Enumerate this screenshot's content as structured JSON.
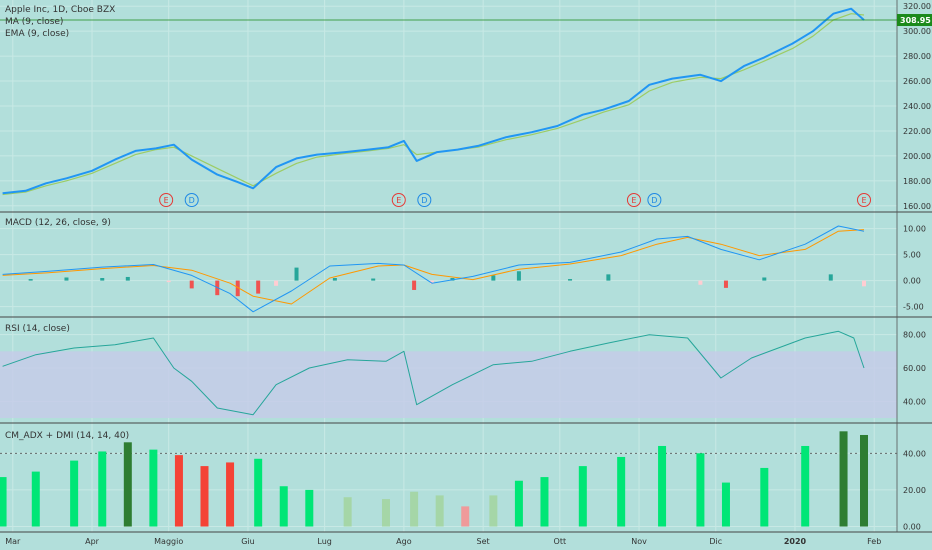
{
  "header": {
    "title": "Apple Inc, 1D, Cboe BZX",
    "ma_label": "MA (9, close)",
    "ema_label": "EMA (9, close)",
    "last_price": "308.95"
  },
  "panes": {
    "macd_label": "MACD (12, 26, close, 9)",
    "rsi_label": "RSI (14, close)",
    "adx_label": "CM_ADX + DMI (14, 14, 40)"
  },
  "colors": {
    "background": "#b2dfdb",
    "price": "#2196f3",
    "ema": "#9ccc65",
    "macd": "#2196f3",
    "signal": "#ff9800",
    "hist_pos": "#26a69a",
    "hist_neg": "#ef5350",
    "hist_neg_light": "#ffcdd2",
    "rsi": "#26a69a",
    "rsi_band": "#c5cae9",
    "adx_bright": "#00e676",
    "adx_dark": "#2e7d32",
    "adx_red": "#f44336",
    "adx_lightgreen": "#a5d6a7",
    "adx_pink": "#ef9a9a",
    "price_tag": "#1b8a1b"
  },
  "chart_data": [
    {
      "type": "line",
      "name": "price",
      "x": [
        "2019-02-25",
        "2019-03-06",
        "2019-03-14",
        "2019-03-22",
        "2019-04-01",
        "2019-04-10",
        "2019-04-18",
        "2019-04-26",
        "2019-05-03",
        "2019-05-10",
        "2019-05-20",
        "2019-05-28",
        "2019-06-03",
        "2019-06-12",
        "2019-06-20",
        "2019-06-28",
        "2019-07-09",
        "2019-07-18",
        "2019-07-26",
        "2019-08-01",
        "2019-08-06",
        "2019-08-14",
        "2019-08-22",
        "2019-08-30",
        "2019-09-10",
        "2019-09-20",
        "2019-09-30",
        "2019-10-10",
        "2019-10-18",
        "2019-10-28",
        "2019-11-05",
        "2019-11-14",
        "2019-11-25",
        "2019-12-03",
        "2019-12-12",
        "2019-12-20",
        "2019-12-31",
        "2020-01-08",
        "2020-01-16",
        "2020-01-23",
        "2020-01-28"
      ],
      "y": [
        170,
        172,
        178,
        182,
        188,
        197,
        204,
        206,
        209,
        197,
        185,
        179,
        174,
        191,
        198,
        201,
        203,
        205,
        207,
        212,
        196,
        203,
        205,
        208,
        215,
        219,
        224,
        233,
        237,
        244,
        257,
        262,
        265,
        260,
        272,
        279,
        290,
        300,
        314,
        318,
        309
      ],
      "ylim": [
        155,
        325
      ],
      "yticks": [
        160,
        180,
        200,
        220,
        240,
        260,
        280,
        300,
        320
      ]
    },
    {
      "type": "line",
      "name": "EMA",
      "x": [
        "2019-02-25",
        "2019-03-06",
        "2019-03-14",
        "2019-03-22",
        "2019-04-01",
        "2019-04-10",
        "2019-04-18",
        "2019-04-26",
        "2019-05-03",
        "2019-05-10",
        "2019-05-20",
        "2019-05-28",
        "2019-06-03",
        "2019-06-12",
        "2019-06-20",
        "2019-06-28",
        "2019-07-09",
        "2019-07-18",
        "2019-07-26",
        "2019-08-01",
        "2019-08-06",
        "2019-08-14",
        "2019-08-22",
        "2019-08-30",
        "2019-09-10",
        "2019-09-20",
        "2019-09-30",
        "2019-10-10",
        "2019-10-18",
        "2019-10-28",
        "2019-11-05",
        "2019-11-14",
        "2019-11-25",
        "2019-12-03",
        "2019-12-12",
        "2019-12-20",
        "2019-12-31",
        "2020-01-08",
        "2020-01-16",
        "2020-01-23",
        "2020-01-28"
      ],
      "y": [
        169,
        171,
        176,
        180,
        186,
        194,
        201,
        205,
        207,
        200,
        190,
        182,
        176,
        186,
        194,
        199,
        202,
        204,
        206,
        209,
        201,
        203,
        205,
        207,
        213,
        217,
        222,
        229,
        235,
        241,
        252,
        259,
        263,
        262,
        269,
        276,
        286,
        296,
        309,
        314,
        313
      ]
    },
    {
      "type": "line",
      "name": "MACD",
      "x": [
        "2019-02-25",
        "2019-03-15",
        "2019-04-05",
        "2019-04-25",
        "2019-05-10",
        "2019-05-25",
        "2019-06-03",
        "2019-06-18",
        "2019-07-03",
        "2019-07-22",
        "2019-08-01",
        "2019-08-12",
        "2019-08-28",
        "2019-09-15",
        "2019-10-05",
        "2019-10-25",
        "2019-11-08",
        "2019-11-20",
        "2019-12-03",
        "2019-12-18",
        "2020-01-05",
        "2020-01-18",
        "2020-01-28"
      ],
      "y": [
        1.2,
        1.8,
        2.6,
        3.1,
        1.0,
        -2.5,
        -6.0,
        -2.0,
        2.8,
        3.3,
        3.0,
        -0.5,
        0.8,
        3.0,
        3.5,
        5.5,
        8.0,
        8.5,
        6.0,
        4.0,
        7.0,
        10.5,
        9.5
      ],
      "ylim": [
        -7,
        13
      ],
      "yticks": [
        -5,
        0,
        5,
        10
      ],
      "tick_labels": [
        "-5.00",
        "0.00",
        "5.00",
        "10.00"
      ]
    },
    {
      "type": "line",
      "name": "Signal",
      "x": [
        "2019-02-25",
        "2019-03-15",
        "2019-04-05",
        "2019-04-25",
        "2019-05-10",
        "2019-05-25",
        "2019-06-03",
        "2019-06-18",
        "2019-07-03",
        "2019-07-22",
        "2019-08-01",
        "2019-08-12",
        "2019-08-28",
        "2019-09-15",
        "2019-10-05",
        "2019-10-25",
        "2019-11-08",
        "2019-11-20",
        "2019-12-03",
        "2019-12-18",
        "2020-01-05",
        "2020-01-18",
        "2020-01-28"
      ],
      "y": [
        1.0,
        1.5,
        2.3,
        2.9,
        2.0,
        -0.5,
        -3.0,
        -4.5,
        0.5,
        2.8,
        3.0,
        1.2,
        0.2,
        2.2,
        3.2,
        4.8,
        7.0,
        8.3,
        7.0,
        4.8,
        6.0,
        9.5,
        9.8
      ]
    },
    {
      "type": "bar",
      "name": "MACD histogram",
      "x": [
        "2019-03-08",
        "2019-03-22",
        "2019-04-05",
        "2019-04-15",
        "2019-05-01",
        "2019-05-10",
        "2019-05-20",
        "2019-05-28",
        "2019-06-05",
        "2019-06-12",
        "2019-06-20",
        "2019-07-05",
        "2019-07-20",
        "2019-08-05",
        "2019-08-12",
        "2019-08-20",
        "2019-09-05",
        "2019-09-15",
        "2019-10-05",
        "2019-10-20",
        "2019-11-25",
        "2019-12-05",
        "2019-12-20",
        "2020-01-15",
        "2020-01-28"
      ],
      "values": [
        0.3,
        0.6,
        0.5,
        0.7,
        -0.3,
        -1.5,
        -2.8,
        -3.0,
        -2.5,
        -1.0,
        2.5,
        0.5,
        0.4,
        -1.8,
        -0.6,
        0.5,
        1.0,
        1.8,
        0.3,
        1.2,
        -0.8,
        -1.4,
        0.6,
        1.2,
        -1.1
      ]
    },
    {
      "type": "line",
      "name": "RSI",
      "x": [
        "2019-02-25",
        "2019-03-10",
        "2019-03-25",
        "2019-04-10",
        "2019-04-25",
        "2019-05-03",
        "2019-05-10",
        "2019-05-20",
        "2019-06-03",
        "2019-06-12",
        "2019-06-25",
        "2019-07-10",
        "2019-07-25",
        "2019-08-01",
        "2019-08-06",
        "2019-08-20",
        "2019-09-05",
        "2019-09-20",
        "2019-10-05",
        "2019-10-20",
        "2019-11-05",
        "2019-11-20",
        "2019-12-03",
        "2019-12-15",
        "2020-01-05",
        "2020-01-18",
        "2020-01-24",
        "2020-01-28"
      ],
      "y": [
        61,
        68,
        72,
        74,
        78,
        60,
        52,
        36,
        32,
        50,
        60,
        65,
        64,
        70,
        38,
        50,
        62,
        64,
        70,
        75,
        80,
        78,
        54,
        66,
        78,
        82,
        78,
        60
      ],
      "ylim": [
        27,
        90
      ],
      "band": [
        30,
        70
      ],
      "yticks": [
        40,
        60,
        80
      ],
      "tick_labels": [
        "40.00",
        "60.00",
        "80.00"
      ]
    },
    {
      "type": "bar",
      "name": "ADX",
      "x": [
        "2019-02-25",
        "2019-03-10",
        "2019-03-25",
        "2019-04-05",
        "2019-04-15",
        "2019-04-25",
        "2019-05-05",
        "2019-05-15",
        "2019-05-25",
        "2019-06-05",
        "2019-06-15",
        "2019-06-25",
        "2019-07-10",
        "2019-07-25",
        "2019-08-05",
        "2019-08-15",
        "2019-08-25",
        "2019-09-05",
        "2019-09-15",
        "2019-09-25",
        "2019-10-10",
        "2019-10-25",
        "2019-11-10",
        "2019-11-25",
        "2019-12-05",
        "2019-12-20",
        "2020-01-05",
        "2020-01-20",
        "2020-01-28"
      ],
      "values": [
        27,
        30,
        36,
        41,
        46,
        42,
        39,
        33,
        35,
        37,
        22,
        20,
        16,
        15,
        19,
        17,
        11,
        17,
        25,
        27,
        33,
        38,
        44,
        40,
        24,
        32,
        44,
        52,
        50
      ],
      "ylim": [
        -3,
        56
      ],
      "level": 40,
      "yticks": [
        0,
        20,
        40
      ],
      "tick_labels": [
        "0.00",
        "20.00",
        "40.00"
      ]
    }
  ],
  "earnings_markers": [
    {
      "date": "2019-04-30",
      "label": "E"
    },
    {
      "date": "2019-05-10",
      "label": "D"
    },
    {
      "date": "2019-07-30",
      "label": "E"
    },
    {
      "date": "2019-08-09",
      "label": "D"
    },
    {
      "date": "2019-10-30",
      "label": "E"
    },
    {
      "date": "2019-11-07",
      "label": "D"
    },
    {
      "date": "2020-01-28",
      "label": "E"
    }
  ],
  "time_axis": {
    "labels": [
      "Mar",
      "Apr",
      "Maggio",
      "Giu",
      "Lug",
      "Ago",
      "Set",
      "Ott",
      "Nov",
      "Dic",
      "2020",
      "Feb"
    ],
    "dates": [
      "2019-03-01",
      "2019-04-01",
      "2019-05-01",
      "2019-06-01",
      "2019-07-01",
      "2019-08-01",
      "2019-09-01",
      "2019-10-01",
      "2019-11-01",
      "2019-12-01",
      "2020-01-01",
      "2020-02-01"
    ]
  }
}
